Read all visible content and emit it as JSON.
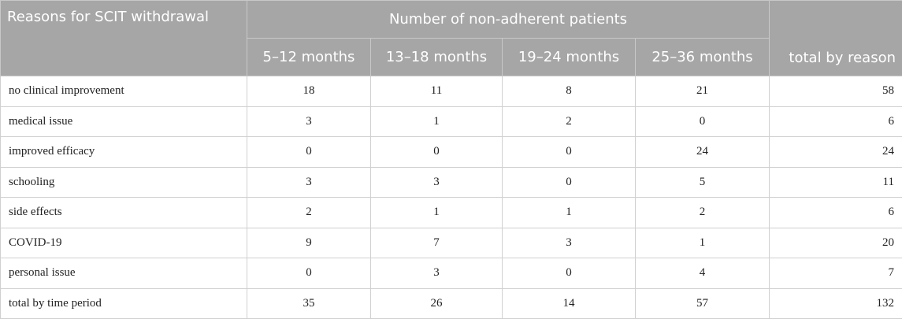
{
  "table": {
    "header": {
      "row_label": "Reasons for SCIT withdrawal",
      "group": "Number of non-adherent patients",
      "columns": [
        "5–12 months",
        "13–18 months",
        "19–24 months",
        "25–36 months"
      ],
      "total": "total by reason"
    },
    "rows": [
      [
        "no clinical improvement",
        18,
        11,
        8,
        21,
        58
      ],
      [
        "medical issue",
        3,
        1,
        2,
        0,
        6
      ],
      [
        "improved efficacy",
        0,
        0,
        0,
        24,
        24
      ],
      [
        "schooling",
        3,
        3,
        0,
        5,
        11
      ],
      [
        "side effects",
        2,
        1,
        1,
        2,
        6
      ],
      [
        "COVID-19",
        9,
        7,
        3,
        1,
        20
      ],
      [
        "personal issue",
        0,
        3,
        0,
        4,
        7
      ],
      [
        "total by time period",
        35,
        26,
        14,
        57,
        132
      ]
    ]
  }
}
